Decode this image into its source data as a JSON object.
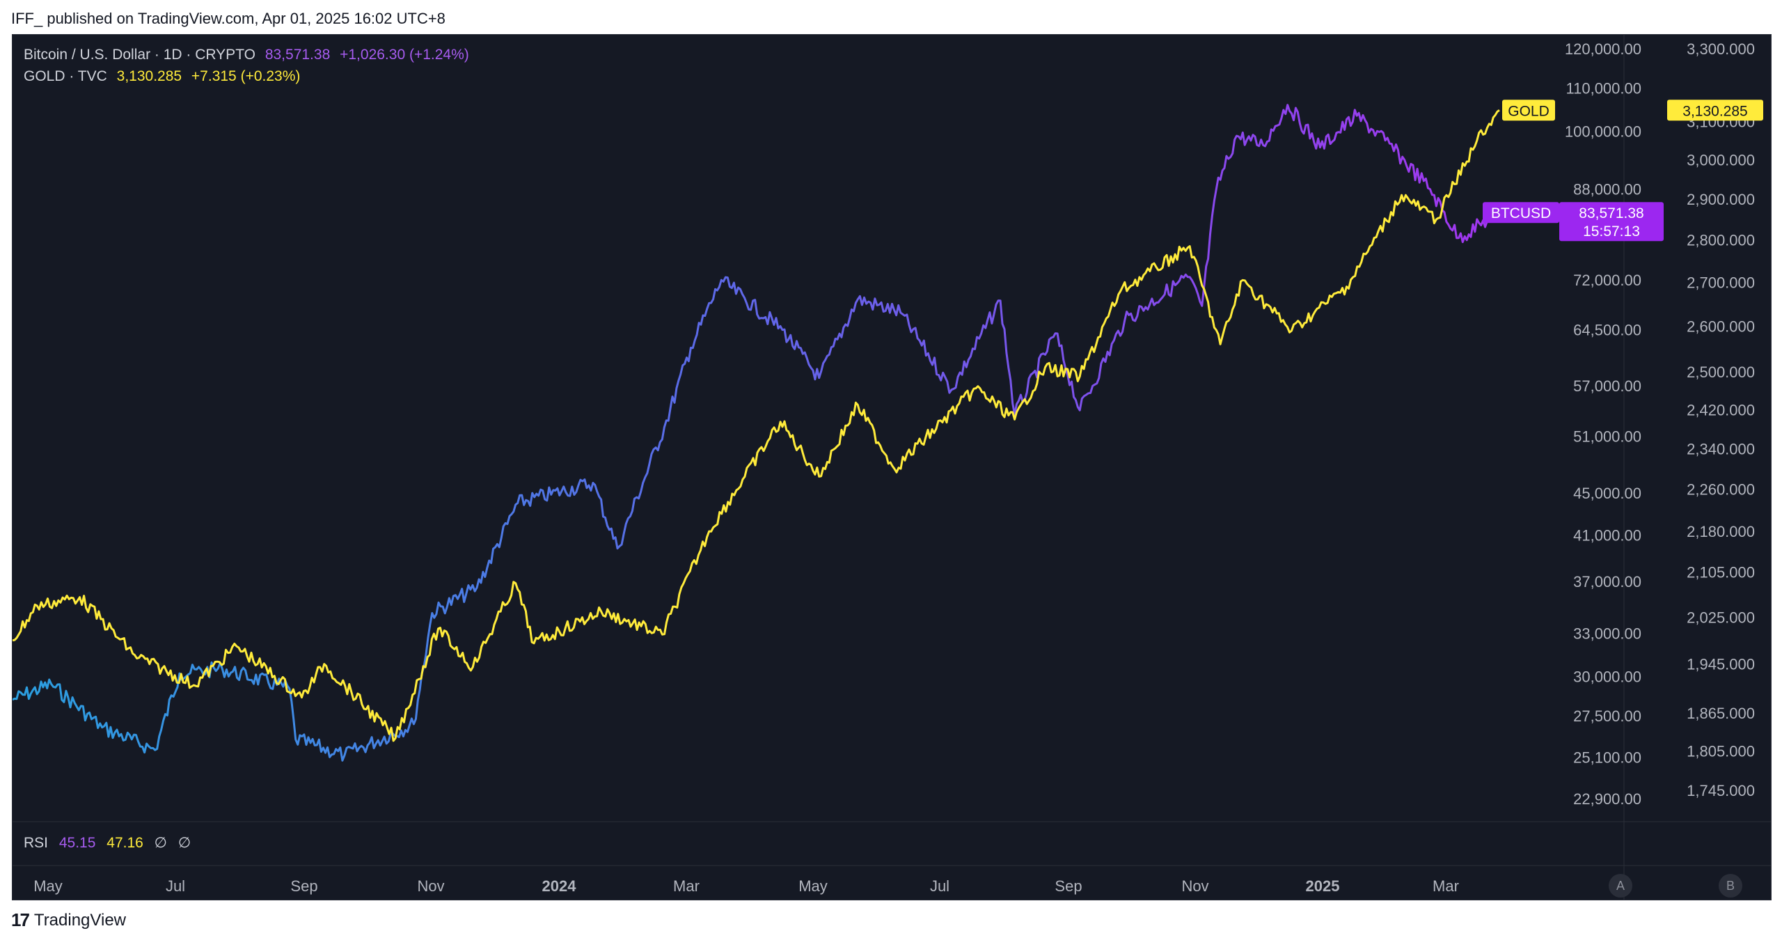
{
  "publish_info": "IFF_ published on TradingView.com, Apr 01, 2025 16:02 UTC+8",
  "legend": {
    "btc": {
      "title": "Bitcoin / U.S. Dollar · 1D · CRYPTO",
      "price": "83,571.38",
      "change": "+1,026.30 (+1.24%)"
    },
    "gold": {
      "title": "GOLD · TVC",
      "price": "3,130.285",
      "change": "+7.315 (+0.23%)"
    }
  },
  "price_tags": {
    "gold_name": "GOLD",
    "gold_price": "3,130.285",
    "btc_name": "BTCUSD",
    "btc_price": "83,571.38",
    "btc_countdown": "15:57:13"
  },
  "rsi_pane": {
    "label": "RSI",
    "btc_value": "45.15",
    "gold_value": "47.16",
    "na1": "∅",
    "na2": "∅"
  },
  "scale_buttons": {
    "a": "A",
    "b": "B"
  },
  "footer": {
    "brand": "TradingView",
    "logo_glyph": "17"
  },
  "colors": {
    "background": "#151924",
    "btc_start": "#2b9fe0",
    "btc_mid": "#5b6be8",
    "btc_end": "#a435f0",
    "gold": "#ffeb3b",
    "tag_gold_bg": "#ffeb3b",
    "tag_btc_bg": "#9c27f0"
  },
  "chart_data": {
    "type": "line",
    "scale": "log",
    "grid": false,
    "x_labels": [
      {
        "label": "May",
        "bold": false
      },
      {
        "label": "Jul",
        "bold": false
      },
      {
        "label": "Sep",
        "bold": false
      },
      {
        "label": "Nov",
        "bold": false
      },
      {
        "label": "2024",
        "bold": true
      },
      {
        "label": "Mar",
        "bold": false
      },
      {
        "label": "May",
        "bold": false
      },
      {
        "label": "Jul",
        "bold": false
      },
      {
        "label": "Sep",
        "bold": false
      },
      {
        "label": "Nov",
        "bold": false
      },
      {
        "label": "2025",
        "bold": true
      },
      {
        "label": "Mar",
        "bold": false
      }
    ],
    "y_axis_btc": {
      "ticks": [
        "120,000.00",
        "110,000.00",
        "100,000.00",
        "88,000.00",
        "72,000.00",
        "64,500.00",
        "57,000.00",
        "51,000.00",
        "45,000.00",
        "41,000.00",
        "37,000.00",
        "33,000.00",
        "30,000.00",
        "27,500.00",
        "25,100.00",
        "22,900.00"
      ],
      "tick_values": [
        120000,
        110000,
        100000,
        88000,
        72000,
        64500,
        57000,
        51000,
        45000,
        41000,
        37000,
        33000,
        30000,
        27500,
        25100,
        22900
      ]
    },
    "y_axis_gold": {
      "ticks": [
        "3,300.000",
        "3,100.000",
        "3,000.000",
        "2,900.000",
        "2,800.000",
        "2,700.000",
        "2,600.000",
        "2,500.000",
        "2,420.000",
        "2,340.000",
        "2,260.000",
        "2,180.000",
        "2,105.000",
        "2,025.000",
        "1,945.000",
        "1,865.000",
        "1,805.000",
        "1,745.000"
      ],
      "tick_values": [
        3300,
        3100,
        3000,
        2900,
        2800,
        2700,
        2600,
        2500,
        2420,
        2340,
        2260,
        2180,
        2105,
        2025,
        1945,
        1865,
        1805,
        1745
      ]
    },
    "series": [
      {
        "name": "BTCUSD",
        "dates": [
          "2023-04-01",
          "2023-04-20",
          "2023-05-15",
          "2023-06-10",
          "2023-06-22",
          "2023-07-13",
          "2023-08-15",
          "2023-08-18",
          "2023-09-11",
          "2023-10-15",
          "2023-10-24",
          "2023-11-15",
          "2023-12-05",
          "2024-01-11",
          "2024-01-23",
          "2024-02-15",
          "2024-02-28",
          "2024-03-14",
          "2024-04-13",
          "2024-05-01",
          "2024-05-20",
          "2024-06-10",
          "2024-07-05",
          "2024-07-29",
          "2024-08-05",
          "2024-08-25",
          "2024-09-06",
          "2024-09-28",
          "2024-10-29",
          "2024-11-05",
          "2024-11-12",
          "2024-11-22",
          "2024-12-05",
          "2024-12-17",
          "2025-01-02",
          "2025-01-20",
          "2025-02-03",
          "2025-02-25",
          "2025-03-11",
          "2025-03-31"
        ],
        "values": [
          28500,
          29500,
          26800,
          25500,
          30200,
          30500,
          29200,
          26100,
          25200,
          27000,
          34500,
          36500,
          44000,
          46000,
          39800,
          52000,
          62000,
          72000,
          64500,
          58000,
          69000,
          67000,
          56500,
          68800,
          53500,
          64000,
          54000,
          65800,
          72500,
          68000,
          88000,
          99000,
          97000,
          106000,
          96500,
          103500,
          98000,
          88000,
          79000,
          83571.38
        ]
      },
      {
        "name": "GOLD",
        "dates": [
          "2023-04-01",
          "2023-04-13",
          "2023-05-04",
          "2023-05-31",
          "2023-06-29",
          "2023-07-20",
          "2023-08-21",
          "2023-09-01",
          "2023-10-06",
          "2023-10-27",
          "2023-11-13",
          "2023-12-04",
          "2023-12-13",
          "2024-01-15",
          "2024-02-14",
          "2024-03-08",
          "2024-04-12",
          "2024-05-01",
          "2024-05-20",
          "2024-06-07",
          "2024-07-17",
          "2024-08-05",
          "2024-08-20",
          "2024-09-06",
          "2024-09-26",
          "2024-10-30",
          "2024-11-14",
          "2024-11-25",
          "2024-12-19",
          "2025-01-15",
          "2025-02-11",
          "2025-02-28",
          "2025-03-20",
          "2025-03-31"
        ],
        "values": [
          1985,
          2045,
          2060,
          1960,
          1910,
          1975,
          1890,
          1945,
          1825,
          2005,
          1940,
          2085,
          1980,
          2035,
          1995,
          2180,
          2395,
          2285,
          2430,
          2300,
          2465,
          2400,
          2510,
          2490,
          2680,
          2785,
          2560,
          2705,
          2590,
          2690,
          2910,
          2850,
          3050,
          3130.285
        ]
      }
    ],
    "last_values": {
      "BTCUSD": 83571.38,
      "GOLD": 3130.285
    }
  }
}
